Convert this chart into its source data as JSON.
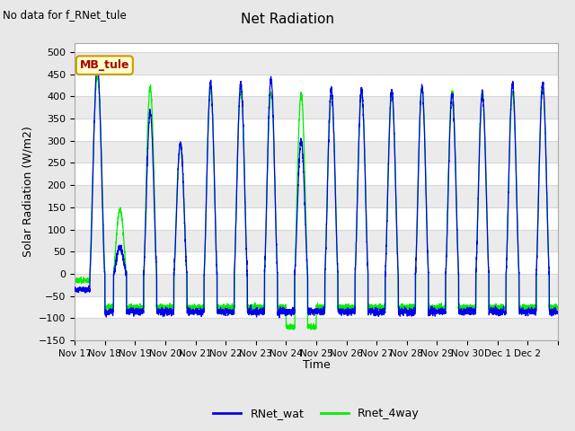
{
  "title": "Net Radiation",
  "ylabel": "Solar Radiation (W/m2)",
  "xlabel": "Time",
  "top_label": "No data for f_RNet_tule",
  "legend_box_label": "MB_tule",
  "ylim": [
    -150,
    520
  ],
  "line1_label": "RNet_wat",
  "line1_color": "#0000ee",
  "line2_label": "Rnet_4way",
  "line2_color": "#00ee00",
  "fig_bg_color": "#e8e8e8",
  "plot_bg_color": "#ffffff",
  "grid_color": "#d8d8d8",
  "xtick_labels": [
    "Nov 17",
    "Nov 18",
    "Nov 19",
    "Nov 20",
    "Nov 21",
    "Nov 22",
    "Nov 23",
    "Nov 24",
    "Nov 25",
    "Nov 26",
    "Nov 27",
    "Nov 28",
    "Nov 29",
    "Nov 30",
    "Dec 1",
    "Dec 2"
  ],
  "num_days": 16,
  "blue_peaks": [
    470,
    60,
    365,
    295,
    430,
    430,
    440,
    300,
    415,
    415,
    415,
    422,
    405,
    405,
    428,
    430
  ],
  "green_peaks": [
    445,
    145,
    420,
    295,
    415,
    415,
    408,
    405,
    405,
    405,
    405,
    420,
    410,
    410,
    408,
    420
  ],
  "blue_night": -85,
  "green_night": -75
}
